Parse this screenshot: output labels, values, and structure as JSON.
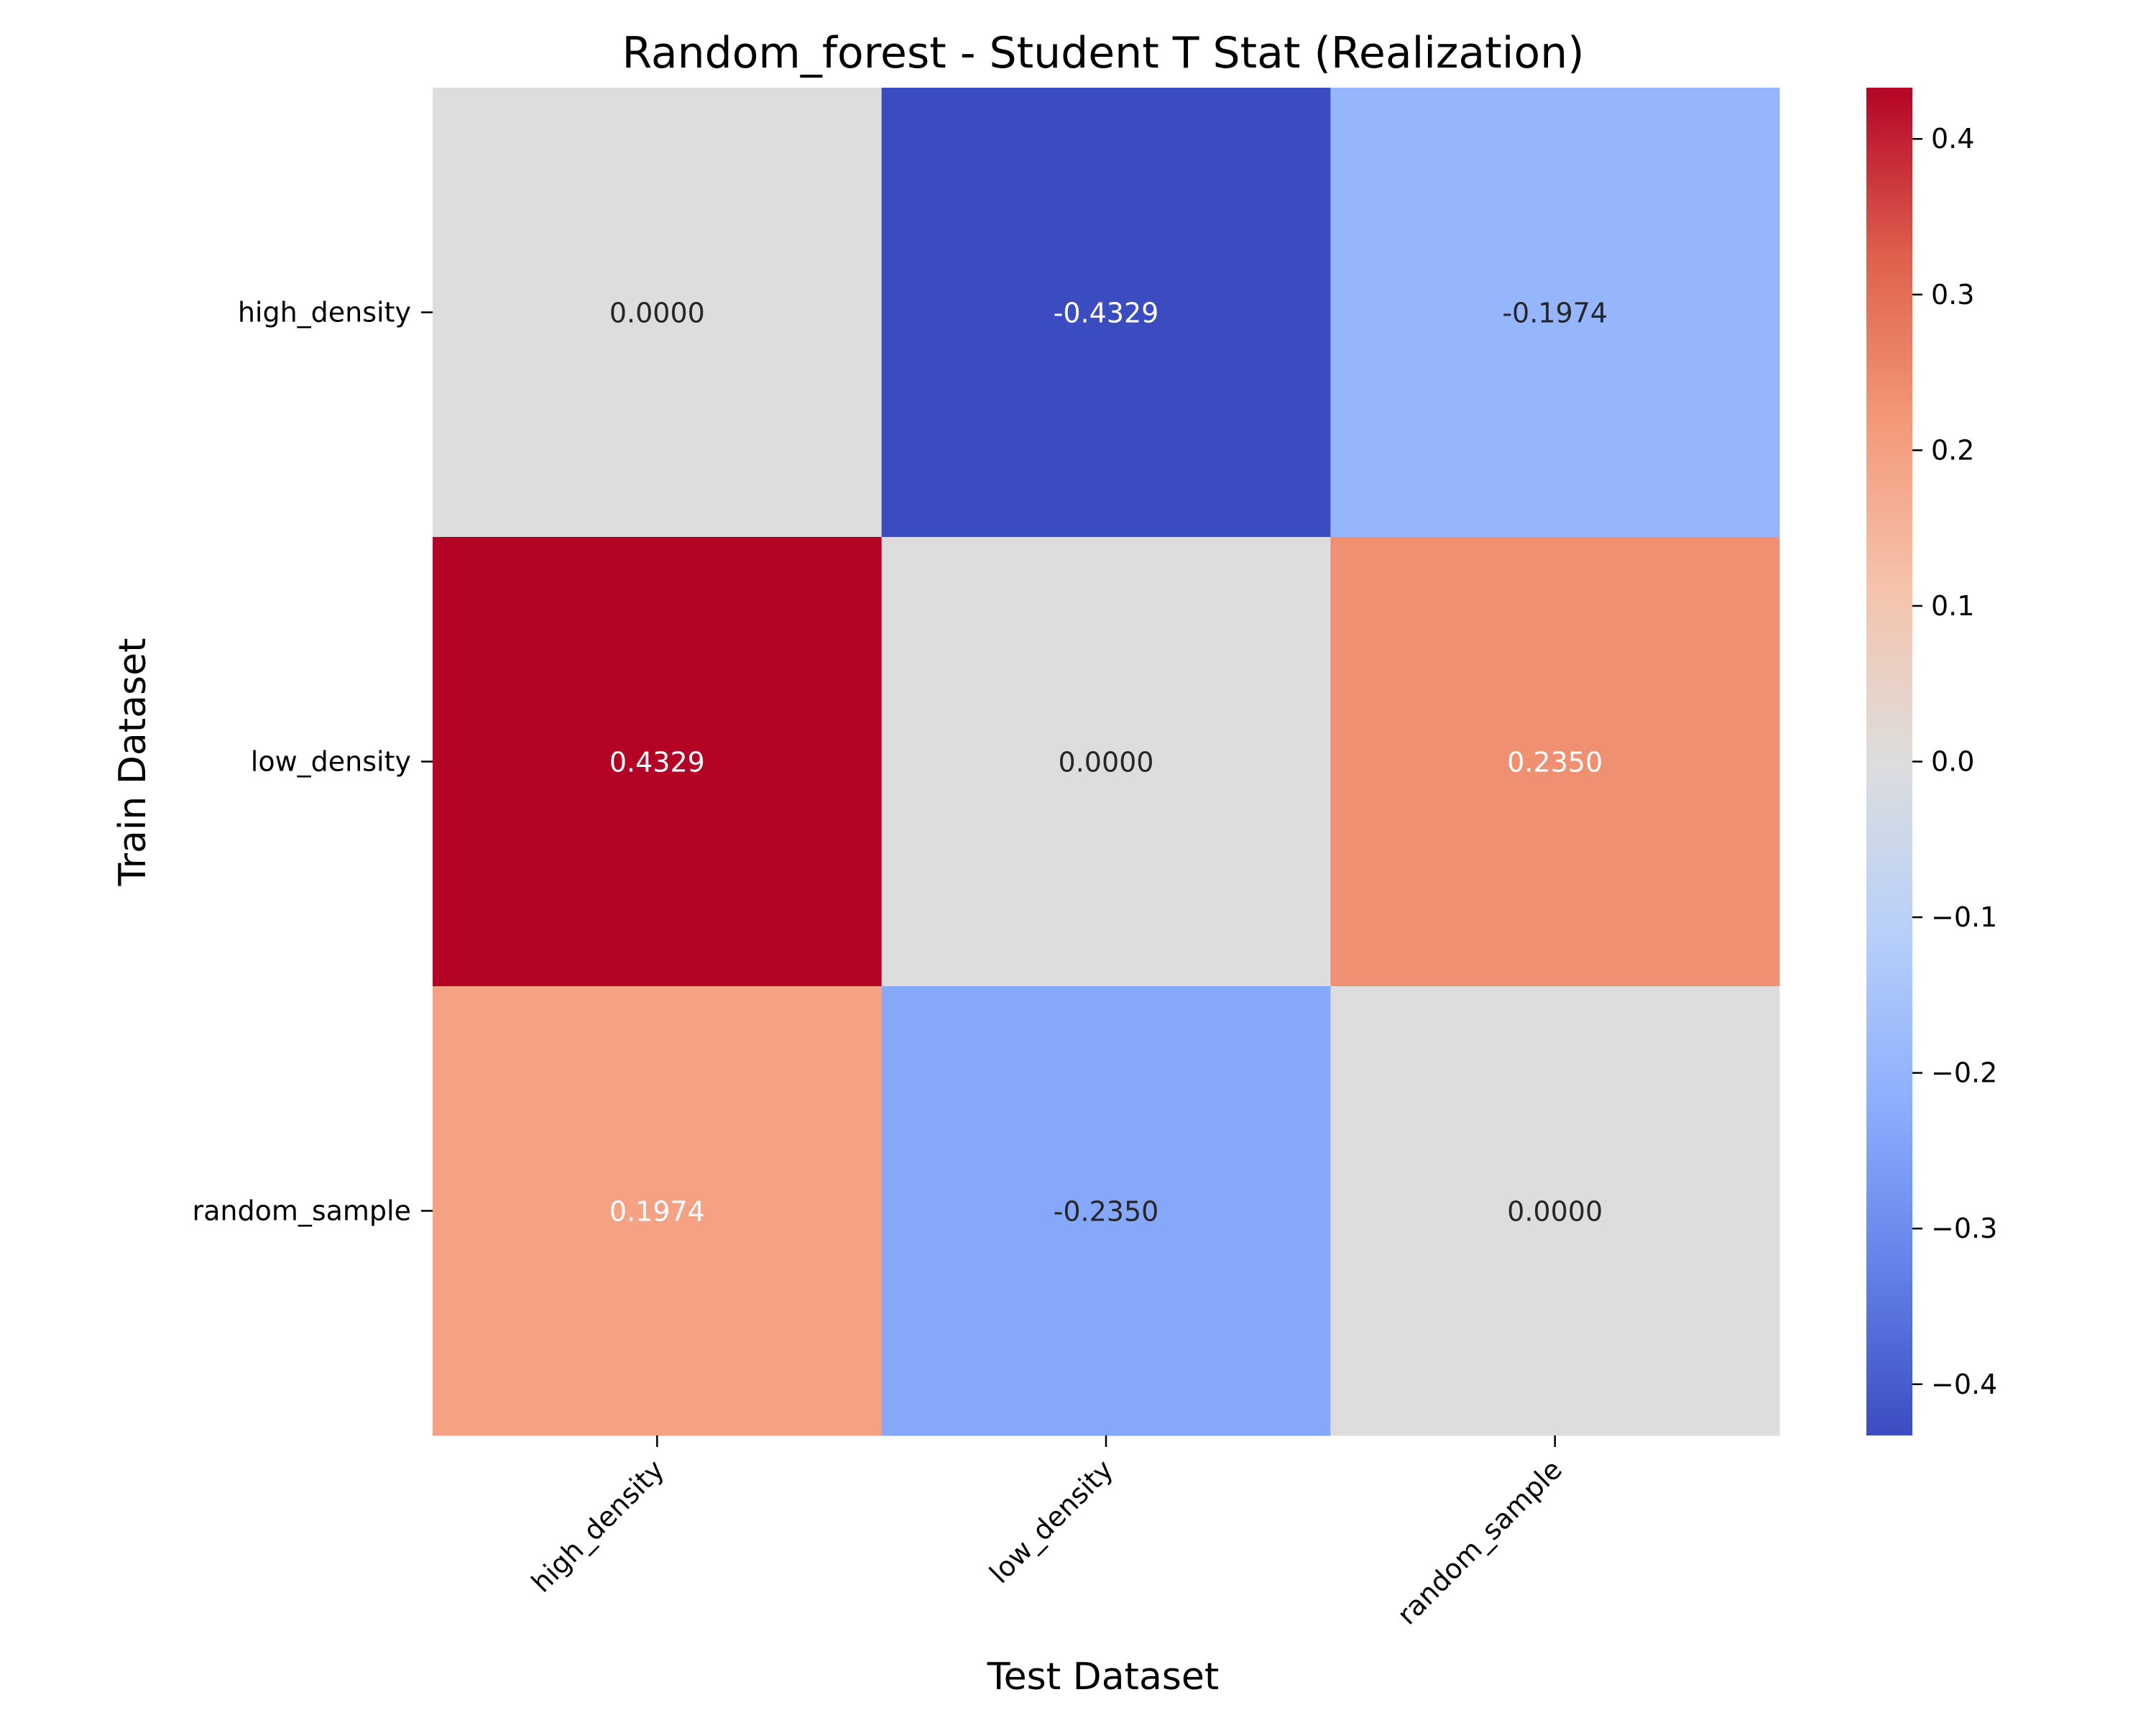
{
  "chart_data": {
    "type": "heatmap",
    "title": "Random_forest - Student T Stat (Realization)",
    "xlabel": "Test Dataset",
    "ylabel": "Train Dataset",
    "x_categories": [
      "high_density",
      "low_density",
      "random_sample"
    ],
    "y_categories": [
      "high_density",
      "low_density",
      "random_sample"
    ],
    "values": [
      [
        0.0,
        -0.4329,
        -0.1974
      ],
      [
        0.4329,
        0.0,
        0.235
      ],
      [
        0.1974,
        -0.235,
        0.0
      ]
    ],
    "cell_labels": [
      [
        "0.0000",
        "-0.4329",
        "-0.1974"
      ],
      [
        "0.4329",
        "0.0000",
        "0.2350"
      ],
      [
        "0.1974",
        "-0.2350",
        "0.0000"
      ]
    ],
    "colorscale": "coolwarm",
    "color_range": [
      -0.4329,
      0.4329
    ],
    "colorbar_ticks": [
      0.4,
      0.3,
      0.2,
      0.1,
      0.0,
      -0.1,
      -0.2,
      -0.3,
      -0.4
    ],
    "colorbar_tick_labels": [
      "0.4",
      "0.3",
      "0.2",
      "0.1",
      "0.0",
      "−0.1",
      "−0.2",
      "−0.3",
      "−0.4"
    ],
    "colors": {
      "min": "#3b4cc0",
      "mid": "#dddddd",
      "max": "#b40426"
    }
  }
}
